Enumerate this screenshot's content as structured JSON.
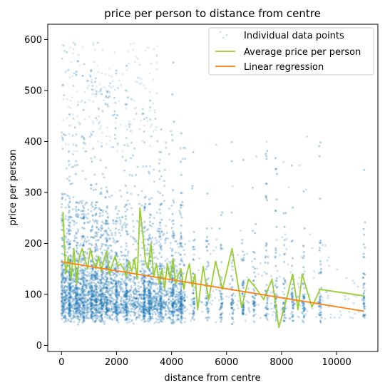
{
  "chart_data": {
    "type": "scatter",
    "title": "price per person to distance from centre",
    "xlabel": "distance from centre",
    "ylabel": "price per person",
    "xlim": [
      -500,
      11500
    ],
    "ylim": [
      -12,
      630
    ],
    "x_ticks": [
      0,
      2000,
      4000,
      6000,
      8000,
      10000
    ],
    "y_ticks": [
      0,
      100,
      200,
      300,
      400,
      500,
      600
    ],
    "legend_position": "top-right",
    "grid": false,
    "colors": {
      "points": "#1f77b4",
      "average": "#9acd32",
      "regression": "#ff7f0e"
    },
    "series": [
      {
        "name": "Individual data points",
        "kind": "scatter",
        "description": "dense cloud of semi-transparent points concentrated between 0 and 4500 with vertical clusters at discrete distances"
      },
      {
        "name": "Average price per person",
        "kind": "line",
        "x": [
          50,
          150,
          250,
          350,
          450,
          550,
          650,
          750,
          850,
          950,
          1050,
          1150,
          1250,
          1350,
          1450,
          1550,
          1650,
          1750,
          1850,
          1950,
          2050,
          2150,
          2250,
          2350,
          2450,
          2550,
          2650,
          2750,
          2850,
          2950,
          3050,
          3150,
          3250,
          3350,
          3450,
          3550,
          3650,
          3750,
          3850,
          3950,
          4050,
          4150,
          4250,
          4350,
          4450,
          4550,
          4650,
          4750,
          4850,
          4950,
          5150,
          5350,
          5600,
          5850,
          6200,
          6550,
          6800,
          7100,
          7350,
          7650,
          7900,
          8200,
          8400,
          8600,
          8750,
          9100,
          9400,
          11000
        ],
        "y": [
          262,
          140,
          175,
          130,
          190,
          120,
          175,
          190,
          170,
          150,
          190,
          165,
          150,
          175,
          145,
          170,
          185,
          140,
          160,
          175,
          155,
          160,
          150,
          135,
          165,
          145,
          170,
          130,
          270,
          220,
          165,
          150,
          200,
          135,
          160,
          120,
          150,
          110,
          160,
          130,
          170,
          120,
          140,
          150,
          110,
          140,
          160,
          115,
          140,
          70,
          155,
          90,
          165,
          110,
          190,
          75,
          130,
          110,
          90,
          130,
          35,
          95,
          140,
          70,
          140,
          75,
          110,
          97
        ]
      },
      {
        "name": "Linear regression",
        "kind": "line",
        "x": [
          0,
          11000
        ],
        "y": [
          164,
          67
        ]
      }
    ]
  }
}
